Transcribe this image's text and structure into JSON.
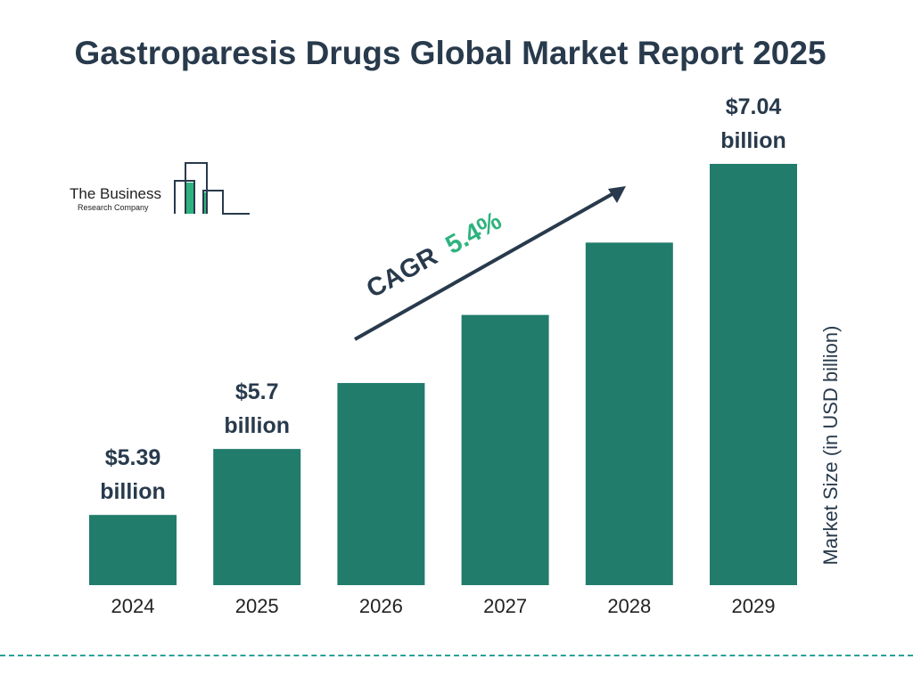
{
  "chart_data": {
    "type": "bar",
    "title": "Gastroparesis Drugs Global Market Report 2025",
    "ylabel": "Market Size (in USD billion)",
    "categories": [
      "2024",
      "2025",
      "2026",
      "2027",
      "2028",
      "2029"
    ],
    "values": [
      5.39,
      5.7,
      6.01,
      6.33,
      6.67,
      7.04
    ],
    "data_labels": [
      "$5.39 billion",
      "$5.7 billion",
      "",
      "",
      "",
      "$7.04 billion"
    ],
    "ylim": [
      5.06,
      7.04
    ],
    "grid": false,
    "bar_color": "#217c6c",
    "annotation": {
      "label": "CAGR",
      "value": "5.4%",
      "value_color": "#2eb37e"
    }
  },
  "logo": {
    "line1": "The Business",
    "line2": "Research Company"
  }
}
